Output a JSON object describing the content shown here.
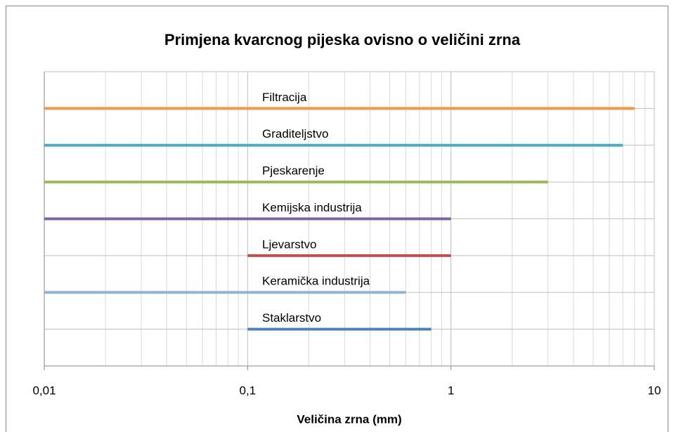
{
  "chart_data": {
    "type": "range-line",
    "title": "Primjena kvarcnog pijeska ovisno o veličini zrna",
    "x_label": "Veličina zrna (mm)",
    "xscale": "log",
    "xlim": [
      0.01,
      10
    ],
    "xticks": [
      {
        "value": 0.01,
        "label": "0,01"
      },
      {
        "value": 0.1,
        "label": "0,1"
      },
      1,
      10
    ],
    "ylim": [
      0,
      8
    ],
    "yticks": [
      0,
      1,
      2,
      3,
      4,
      5,
      6,
      7,
      8
    ],
    "grid": true,
    "series": [
      {
        "name": "Filtracija",
        "color": "#f79646",
        "x": [
          0.01,
          8
        ],
        "values": [
          7,
          7
        ]
      },
      {
        "name": "Graditeljstvo",
        "color": "#4bacc6",
        "x": [
          0.01,
          7
        ],
        "values": [
          6,
          6
        ]
      },
      {
        "name": "Pjeskarenje",
        "color": "#9bbb59",
        "x": [
          0.01,
          3
        ],
        "values": [
          5,
          5
        ]
      },
      {
        "name": "Kemijska industrija",
        "color": "#8064a2",
        "x": [
          0.01,
          1
        ],
        "values": [
          4,
          4
        ]
      },
      {
        "name": "Ljevarstvo",
        "color": "#c0504d",
        "x": [
          0.1,
          1
        ],
        "values": [
          3,
          3
        ]
      },
      {
        "name": "Keramička industrija",
        "color": "#95b3d7",
        "x": [
          0.01,
          0.6
        ],
        "values": [
          2,
          2
        ]
      },
      {
        "name": "Staklarstvo",
        "color": "#4f81bd",
        "x": [
          0.1,
          0.8
        ],
        "values": [
          1,
          1
        ]
      }
    ]
  }
}
